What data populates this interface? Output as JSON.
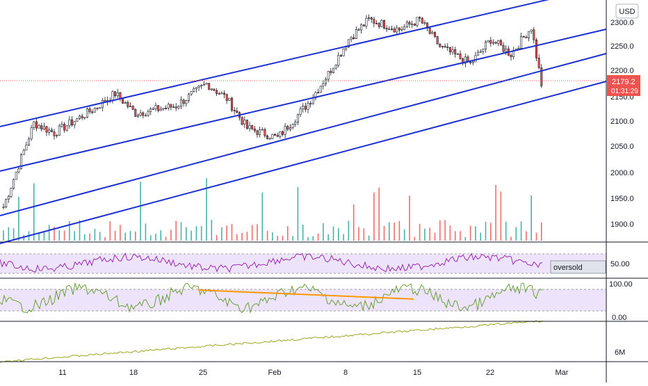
{
  "header": {
    "currency": "USD"
  },
  "price_scale": {
    "ticks": [
      "2300.0",
      "2250.0",
      "2200.0",
      "2150.0",
      "2100.0",
      "2050.0",
      "2000.0",
      "1950.0",
      "1900.0"
    ],
    "last_price": "2179.2",
    "countdown": "01:31:29",
    "last_price_color": "#ef5350"
  },
  "rsi_panel": {
    "ticks": [
      "50.00"
    ],
    "annotation": "oversold",
    "line_color": "#9c27b0"
  },
  "stoch_panel": {
    "ticks": [
      "100.00",
      "0.00"
    ],
    "line_color": "#689f38",
    "trend_color": "#ff9800"
  },
  "obv_panel": {
    "ticks": [
      "6M"
    ],
    "line_color": "#9aa61c"
  },
  "time_axis": {
    "labels": [
      "11",
      "18",
      "25",
      "Feb",
      "8",
      "15",
      "22",
      "Mar"
    ]
  },
  "colors": {
    "up": "#26a69a",
    "down": "#ef5350",
    "channel": "#1c2fd6",
    "candle": "#131722"
  },
  "chart_data": {
    "type": "candlestick",
    "series": [
      {
        "name": "",
        "ohlc_daily": [
          {
            "date": "Jan 5",
            "close": 1930
          },
          {
            "date": "Jan 8",
            "close": 2100
          },
          {
            "date": "Jan 10",
            "close": 2080
          },
          {
            "date": "Jan 14",
            "close": 2130
          },
          {
            "date": "Jan 16",
            "close": 2160
          },
          {
            "date": "Jan 18",
            "close": 2120
          },
          {
            "date": "Jan 22",
            "close": 2135
          },
          {
            "date": "Jan 25",
            "close": 2180
          },
          {
            "date": "Jan 27",
            "close": 2150
          },
          {
            "date": "Jan 29",
            "close": 2090
          },
          {
            "date": "Feb 1",
            "close": 2070
          },
          {
            "date": "Feb 4",
            "close": 2140
          },
          {
            "date": "Feb 6",
            "close": 2200
          },
          {
            "date": "Feb 8",
            "close": 2270
          },
          {
            "date": "Feb 10",
            "close": 2310
          },
          {
            "date": "Feb 13",
            "close": 2290
          },
          {
            "date": "Feb 15",
            "close": 2310
          },
          {
            "date": "Feb 17",
            "close": 2255
          },
          {
            "date": "Feb 20",
            "close": 2220
          },
          {
            "date": "Feb 22",
            "close": 2270
          },
          {
            "date": "Feb 24",
            "close": 2240
          },
          {
            "date": "Feb 26",
            "close": 2295
          },
          {
            "date": "Feb 27",
            "close": 2179.2
          }
        ]
      }
    ],
    "yrange": [
      1870,
      2330
    ],
    "grid": false
  }
}
